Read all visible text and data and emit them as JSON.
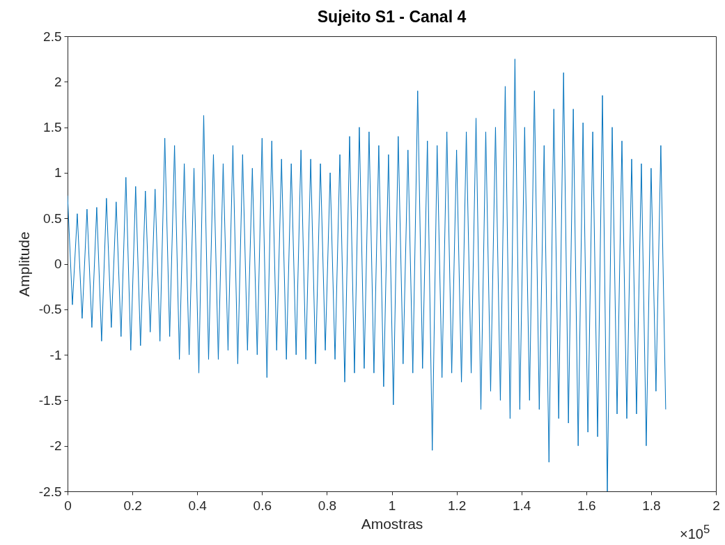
{
  "chart_data": {
    "type": "line",
    "title": "Sujeito S1 - Canal 4",
    "xlabel": "Amostras",
    "ylabel": "Amplitude",
    "xlim": [
      0,
      2
    ],
    "ylim": [
      -2.5,
      2.5
    ],
    "xticks": [
      0,
      0.2,
      0.4,
      0.6,
      0.8,
      1,
      1.2,
      1.4,
      1.6,
      1.8,
      2
    ],
    "yticks": [
      -2.5,
      -2,
      -1.5,
      -1,
      -0.5,
      0,
      0.5,
      1,
      1.5,
      2,
      2.5
    ],
    "annotations": [
      "×10$^{5}$"
    ],
    "series": [
      {
        "color": "#0072bd",
        "x": [
          0,
          0.015,
          0.03,
          0.045,
          0.06,
          0.075,
          0.09,
          0.105,
          0.12,
          0.135,
          0.15,
          0.165,
          0.18,
          0.195,
          0.21,
          0.225,
          0.24,
          0.255,
          0.27,
          0.285,
          0.3,
          0.315,
          0.33,
          0.345,
          0.36,
          0.375,
          0.39,
          0.405,
          0.42,
          0.435,
          0.45,
          0.465,
          0.48,
          0.495,
          0.51,
          0.525,
          0.54,
          0.555,
          0.57,
          0.585,
          0.6,
          0.615,
          0.63,
          0.645,
          0.66,
          0.675,
          0.69,
          0.705,
          0.72,
          0.735,
          0.75,
          0.765,
          0.78,
          0.795,
          0.81,
          0.825,
          0.84,
          0.855,
          0.87,
          0.885,
          0.9,
          0.915,
          0.93,
          0.945,
          0.96,
          0.975,
          0.99,
          1.005,
          1.02,
          1.035,
          1.05,
          1.065,
          1.08,
          1.095,
          1.11,
          1.125,
          1.14,
          1.155,
          1.17,
          1.185,
          1.2,
          1.215,
          1.23,
          1.245,
          1.26,
          1.275,
          1.29,
          1.305,
          1.32,
          1.335,
          1.35,
          1.365,
          1.38,
          1.395,
          1.41,
          1.425,
          1.44,
          1.455,
          1.47,
          1.485,
          1.5,
          1.515,
          1.53,
          1.545,
          1.56,
          1.575,
          1.59,
          1.605,
          1.62,
          1.635,
          1.65,
          1.665,
          1.68,
          1.695,
          1.71,
          1.725,
          1.74,
          1.755,
          1.77,
          1.785,
          1.8,
          1.815,
          1.83,
          1.845
        ],
        "values": [
          0.75,
          -0.45,
          0.55,
          -0.6,
          0.6,
          -0.7,
          0.62,
          -0.85,
          0.72,
          -0.7,
          0.68,
          -0.8,
          0.95,
          -0.95,
          0.85,
          -0.9,
          0.8,
          -0.75,
          0.82,
          -0.85,
          1.38,
          -0.8,
          1.3,
          -1.05,
          1.1,
          -1.0,
          1.05,
          -1.2,
          1.63,
          -1.05,
          1.2,
          -1.05,
          1.1,
          -0.95,
          1.3,
          -1.1,
          1.2,
          -0.95,
          1.05,
          -1.0,
          1.38,
          -1.25,
          1.35,
          -0.95,
          1.15,
          -1.05,
          1.1,
          -1.0,
          1.25,
          -1.05,
          1.15,
          -1.1,
          1.1,
          -0.95,
          1.0,
          -1.05,
          1.2,
          -1.3,
          1.4,
          -1.2,
          1.5,
          -1.15,
          1.45,
          -1.2,
          1.3,
          -1.35,
          1.2,
          -1.55,
          1.4,
          -1.1,
          1.25,
          -1.2,
          1.9,
          -1.15,
          1.35,
          -2.05,
          1.3,
          -1.25,
          1.45,
          -1.2,
          1.25,
          -1.3,
          1.45,
          -1.2,
          1.6,
          -1.6,
          1.45,
          -1.4,
          1.5,
          -1.5,
          1.95,
          -1.7,
          2.25,
          -1.6,
          1.5,
          -1.5,
          1.9,
          -1.6,
          1.3,
          -2.18,
          1.7,
          -1.7,
          2.1,
          -1.75,
          1.7,
          -2.0,
          1.55,
          -1.85,
          1.45,
          -1.9,
          1.85,
          -2.5,
          1.5,
          -1.65,
          1.35,
          -1.7,
          1.15,
          -1.65,
          1.1,
          -2.0,
          1.05,
          -1.4,
          1.3,
          -1.6
        ]
      }
    ]
  }
}
